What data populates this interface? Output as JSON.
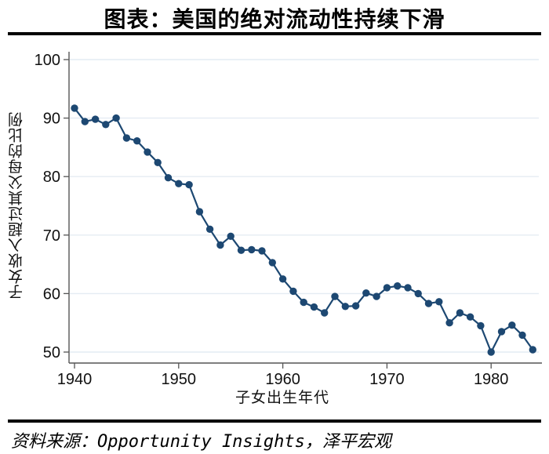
{
  "header": {
    "title": "图表：美国的绝对流动性持续下滑"
  },
  "footer": {
    "source": "资料来源：Opportunity Insights，泽平宏观"
  },
  "chart_data": {
    "type": "line",
    "title": "图表：美国的绝对流动性持续下滑",
    "xlabel": "子女出生年代",
    "ylabel": "子女收入超过其父母的比例",
    "x": [
      1940,
      1941,
      1942,
      1943,
      1944,
      1945,
      1946,
      1947,
      1948,
      1949,
      1950,
      1951,
      1952,
      1953,
      1954,
      1955,
      1956,
      1957,
      1958,
      1959,
      1960,
      1961,
      1962,
      1963,
      1964,
      1965,
      1966,
      1967,
      1968,
      1969,
      1970,
      1971,
      1972,
      1973,
      1974,
      1975,
      1976,
      1977,
      1978,
      1979,
      1980,
      1981,
      1982,
      1983,
      1984
    ],
    "values": [
      91.7,
      89.4,
      89.8,
      88.9,
      90.0,
      86.6,
      86.1,
      84.2,
      82.4,
      79.8,
      78.8,
      78.6,
      74.0,
      71.0,
      68.3,
      69.8,
      67.4,
      67.5,
      67.3,
      65.3,
      62.5,
      60.4,
      58.5,
      57.7,
      56.7,
      59.5,
      57.8,
      57.9,
      60.1,
      59.5,
      61.0,
      61.3,
      61.0,
      60.0,
      58.3,
      58.6,
      55.0,
      56.7,
      56.0,
      54.5,
      50.0,
      53.5,
      54.6,
      52.9,
      50.4
    ],
    "xticks": [
      1940,
      1950,
      1960,
      1970,
      1980
    ],
    "yticks": [
      50,
      60,
      70,
      80,
      90,
      100
    ],
    "ylim": [
      48,
      101
    ],
    "xlim": [
      1939.5,
      1984.5
    ],
    "grid": "horizontal",
    "legend": "none",
    "marker": "circle",
    "colors": {
      "line": "#1d4872",
      "marker": "#1d4872",
      "grid": "#e4ecf3",
      "axis": "#555555",
      "tick_text": "#111111"
    }
  }
}
